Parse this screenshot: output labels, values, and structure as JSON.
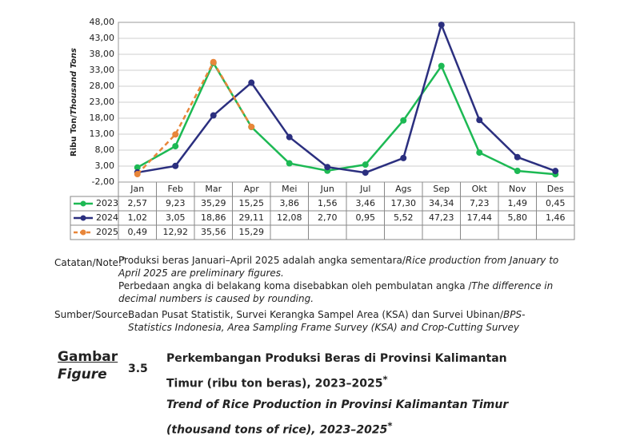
{
  "chart_data": {
    "type": "line",
    "y_label_id": "Ribu Ton/",
    "y_label_en": "Thousand Tons",
    "categories": [
      "Jan",
      "Feb",
      "Mar",
      "Apr",
      "Mei",
      "Jun",
      "Jul",
      "Ags",
      "Sep",
      "Okt",
      "Nov",
      "Des"
    ],
    "series": [
      {
        "name": "2023",
        "color": "#1db954",
        "dashed": false,
        "values": [
          2.57,
          9.23,
          35.29,
          15.25,
          3.86,
          1.56,
          3.46,
          17.3,
          34.34,
          7.23,
          1.49,
          0.45
        ],
        "value_labels": [
          "2,57",
          "9,23",
          "35,29",
          "15,25",
          "3,86",
          "1,56",
          "3,46",
          "17,30",
          "34,34",
          "7,23",
          "1,49",
          "0,45"
        ]
      },
      {
        "name": "2024",
        "color": "#2b2f7f",
        "dashed": false,
        "values": [
          1.02,
          3.05,
          18.86,
          29.11,
          12.08,
          2.7,
          0.95,
          5.52,
          47.23,
          17.44,
          5.8,
          1.46
        ],
        "value_labels": [
          "1,02",
          "3,05",
          "18,86",
          "29,11",
          "12,08",
          "2,70",
          "0,95",
          "5,52",
          "47,23",
          "17,44",
          "5,80",
          "1,46"
        ]
      },
      {
        "name": "2025",
        "color": "#e8863a",
        "dashed": true,
        "values": [
          0.49,
          12.92,
          35.56,
          15.29,
          null,
          null,
          null,
          null,
          null,
          null,
          null,
          null
        ],
        "value_labels": [
          "0,49",
          "12,92",
          "35,56",
          "15,29",
          null,
          null,
          null,
          null,
          null,
          null,
          null,
          null
        ]
      }
    ],
    "ylim": [
      -2,
      48
    ],
    "yticks": [
      {
        "value": -2,
        "label": "-2,00"
      },
      {
        "value": 3,
        "label": "3,00"
      },
      {
        "value": 8,
        "label": "8,00"
      },
      {
        "value": 13,
        "label": "13,00"
      },
      {
        "value": 18,
        "label": "18,00"
      },
      {
        "value": 23,
        "label": "23,00"
      },
      {
        "value": 28,
        "label": "28,00"
      },
      {
        "value": 33,
        "label": "33,00"
      },
      {
        "value": 38,
        "label": "38,00"
      },
      {
        "value": 43,
        "label": "43,00"
      },
      {
        "value": 48,
        "label": "48,00"
      }
    ],
    "grid": true
  },
  "notes": {
    "label": "Catatan/Note:",
    "marker": "*",
    "line1": {
      "id": "Produksi beras Januari–April 2025 adalah angka sementara/",
      "en": "Rice production from January to April 2025 are preliminary figures."
    },
    "line2": {
      "id": "Perbedaan angka di belakang koma disebabkan oleh pembulatan angka /",
      "en": "The difference in decimal numbers is caused by rounding."
    },
    "source_label": "Sumber/Source:",
    "source": {
      "id": "Badan Pusat Statistik, Survei Kerangka Sampel Area (KSA) dan Survei Ubinan/",
      "en": "BPS-Statistics Indonesia, Area Sampling Frame Survey (KSA) and Crop-Cutting Survey"
    }
  },
  "caption": {
    "label_id": "Gambar",
    "label_en": "Figure",
    "number": "3.5",
    "title_id": "Perkembangan Produksi Beras di Provinsi Kalimantan Timur (ribu ton beras), 2023–2025",
    "title_en": "Trend of Rice Production in Provinsi Kalimantan Timur (thousand tons of rice), 2023–2025",
    "marker": "*"
  }
}
